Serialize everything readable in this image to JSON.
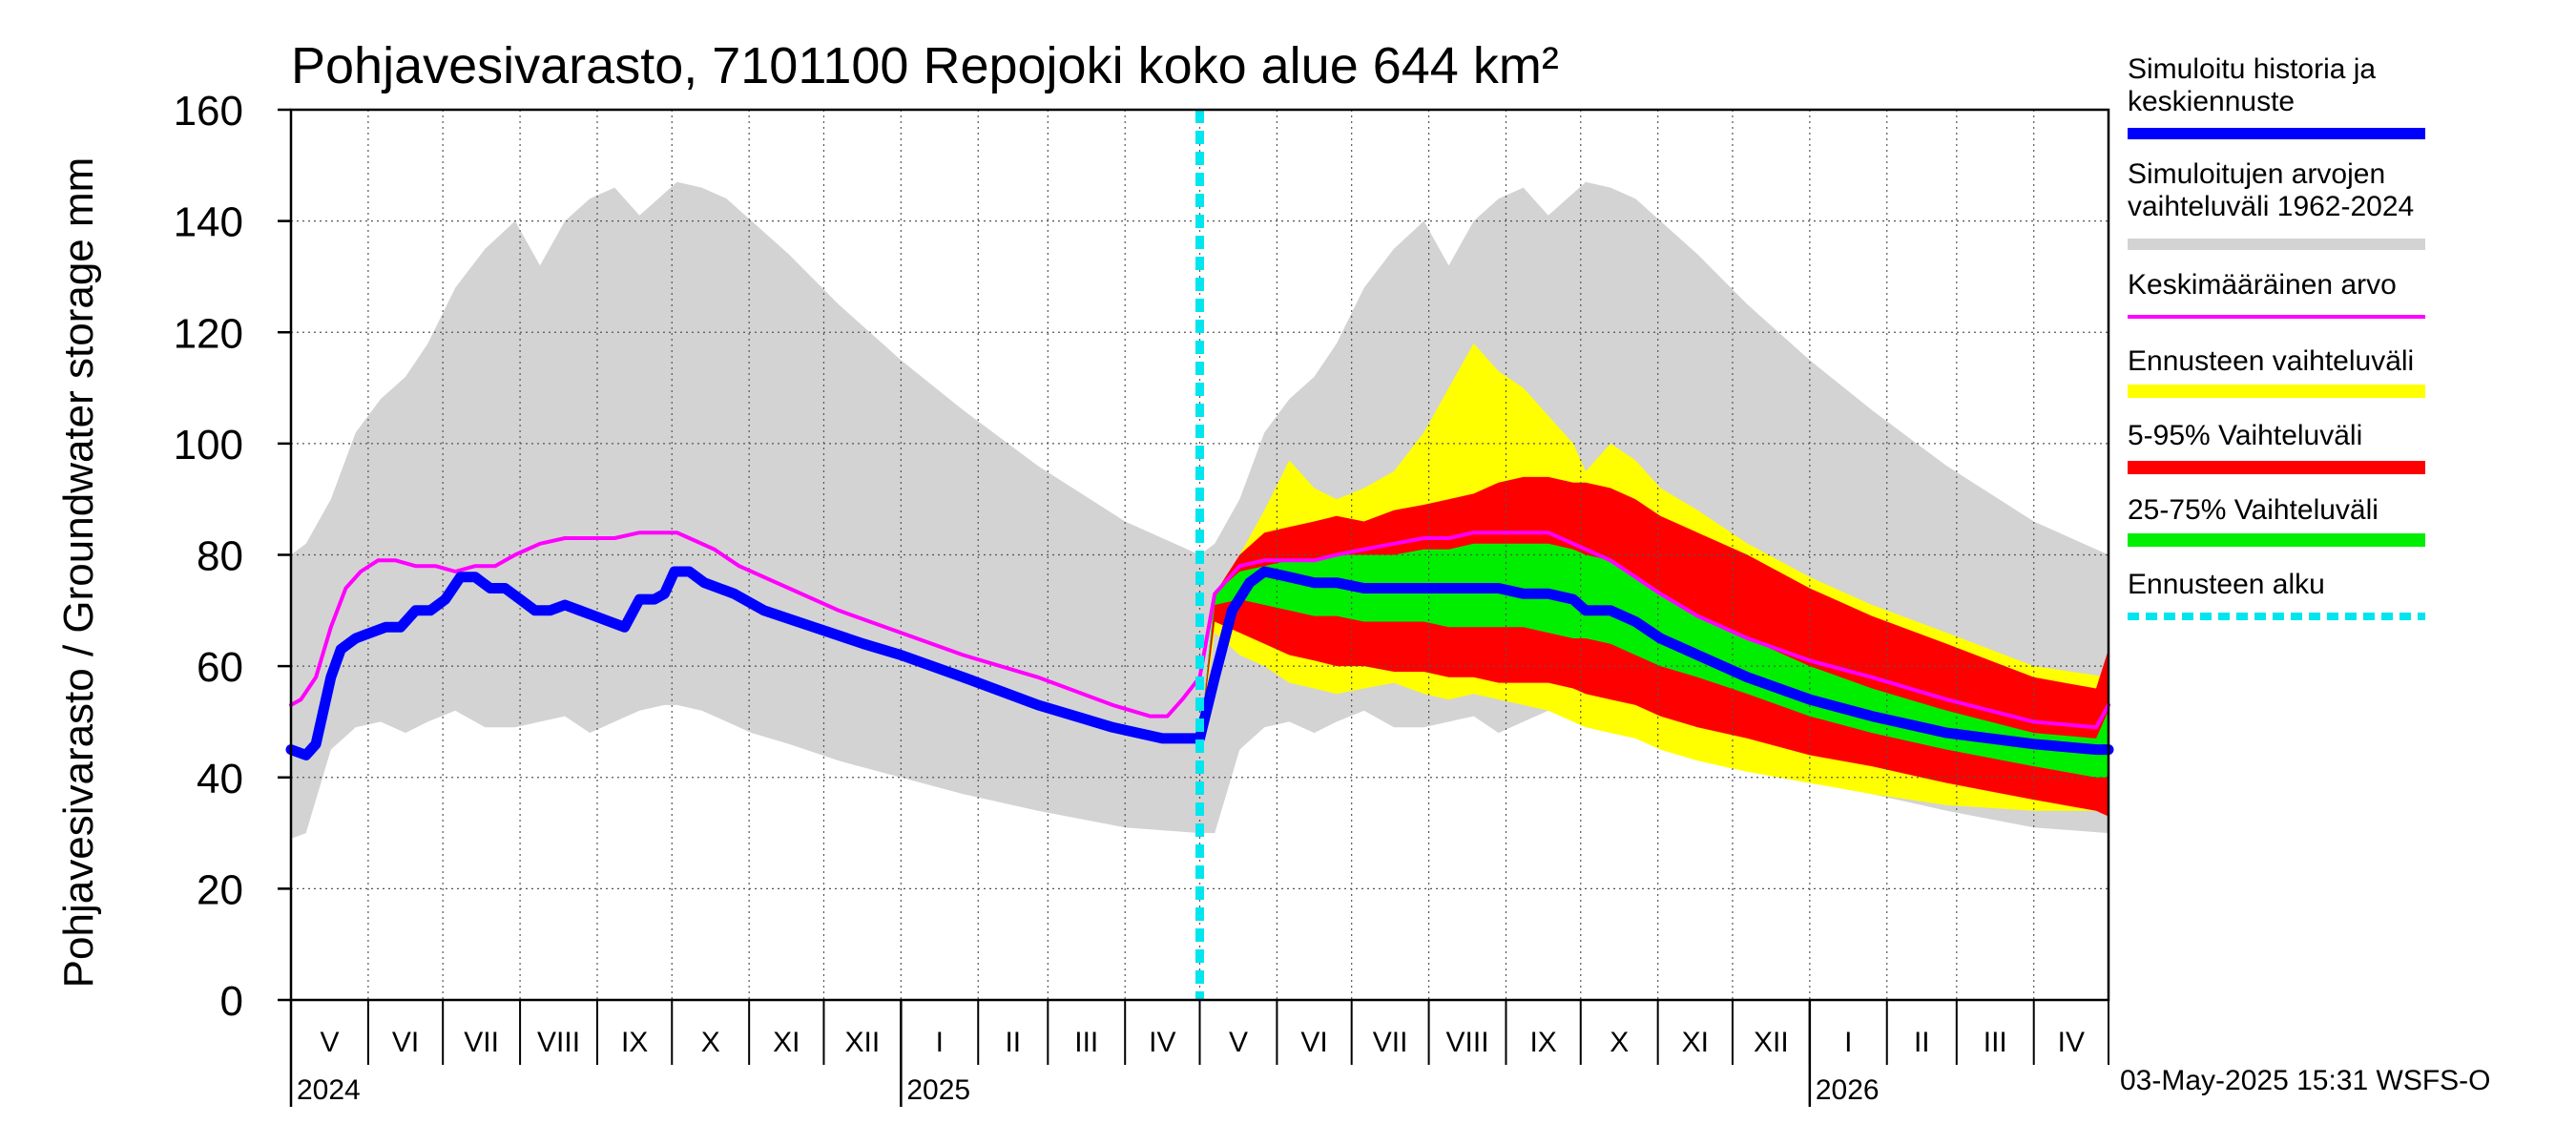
{
  "chart_data": {
    "type": "area",
    "title": "Pohjavesivarasto, 7101100 Repojoki koko alue 644 km²",
    "ylabel": "Pohjavesivarasto / Groundwater storage   mm",
    "xlabel": "",
    "ylim": [
      0,
      160
    ],
    "yticks": [
      0,
      20,
      40,
      60,
      80,
      100,
      120,
      140,
      160
    ],
    "xlim_days": [
      0,
      730
    ],
    "grid": true,
    "forecast_start_day": 365,
    "months": [
      {
        "label": "V",
        "start": 0
      },
      {
        "label": "VI",
        "start": 31
      },
      {
        "label": "VII",
        "start": 61
      },
      {
        "label": "VIII",
        "start": 92
      },
      {
        "label": "IX",
        "start": 123
      },
      {
        "label": "X",
        "start": 153
      },
      {
        "label": "XI",
        "start": 184
      },
      {
        "label": "XII",
        "start": 214
      },
      {
        "label": "I",
        "start": 245
      },
      {
        "label": "II",
        "start": 276
      },
      {
        "label": "III",
        "start": 304
      },
      {
        "label": "IV",
        "start": 335
      },
      {
        "label": "V",
        "start": 365
      },
      {
        "label": "VI",
        "start": 396
      },
      {
        "label": "VII",
        "start": 426
      },
      {
        "label": "VIII",
        "start": 457
      },
      {
        "label": "IX",
        "start": 488
      },
      {
        "label": "X",
        "start": 518
      },
      {
        "label": "XI",
        "start": 549
      },
      {
        "label": "XII",
        "start": 579
      },
      {
        "label": "I",
        "start": 610
      },
      {
        "label": "II",
        "start": 641
      },
      {
        "label": "III",
        "start": 669
      },
      {
        "label": "IV",
        "start": 700
      }
    ],
    "month_end": 730,
    "years": [
      {
        "label": "2024",
        "day": 0
      },
      {
        "label": "2025",
        "day": 245
      },
      {
        "label": "2026",
        "day": 610
      }
    ],
    "series": [
      {
        "name": "Simuloitujen arvojen vaihteluväli 1962-2024",
        "kind": "band",
        "color": "#d3d3d3",
        "x": [
          0,
          6,
          16,
          26,
          36,
          46,
          55,
          66,
          78,
          90,
          100,
          110,
          120,
          130,
          140,
          150,
          155,
          165,
          175,
          185,
          200,
          220,
          245,
          270,
          300,
          335,
          365,
          371,
          381,
          391,
          401,
          411,
          420,
          431,
          443,
          455,
          465,
          475,
          485,
          495,
          505,
          515,
          520,
          530,
          540,
          550,
          565,
          585,
          610,
          635,
          665,
          700,
          730
        ],
        "upper": [
          80,
          82,
          90,
          102,
          108,
          112,
          118,
          128,
          135,
          140,
          132,
          140,
          144,
          146,
          141,
          145,
          147,
          146,
          144,
          140,
          134,
          125,
          115,
          106,
          96,
          86,
          80,
          82,
          90,
          102,
          108,
          112,
          118,
          128,
          135,
          140,
          132,
          140,
          144,
          146,
          141,
          145,
          147,
          146,
          144,
          140,
          134,
          125,
          115,
          106,
          96,
          86,
          80
        ],
        "lower": [
          29,
          30,
          45,
          49,
          50,
          48,
          50,
          52,
          49,
          49,
          50,
          51,
          48,
          50,
          52,
          53,
          53,
          52,
          50,
          48,
          46,
          43,
          40,
          37,
          34,
          31,
          30,
          30,
          45,
          49,
          50,
          48,
          50,
          52,
          49,
          49,
          50,
          51,
          48,
          50,
          52,
          53,
          53,
          52,
          50,
          48,
          46,
          43,
          40,
          37,
          34,
          31,
          30
        ]
      },
      {
        "name": "Ennusteen vaihteluväli",
        "kind": "band",
        "color": "#ffff00",
        "x": [
          365,
          371,
          381,
          391,
          401,
          411,
          420,
          431,
          443,
          455,
          465,
          475,
          485,
          495,
          505,
          515,
          520,
          530,
          540,
          550,
          565,
          585,
          610,
          635,
          665,
          700,
          730
        ],
        "upper": [
          46,
          72,
          80,
          88,
          97,
          92,
          90,
          92,
          95,
          102,
          110,
          118,
          113,
          110,
          105,
          100,
          95,
          100,
          97,
          92,
          88,
          82,
          76,
          71,
          66,
          60,
          58
        ],
        "lower": [
          46,
          66,
          62,
          60,
          57,
          56,
          55,
          56,
          57,
          55,
          54,
          55,
          54,
          53,
          52,
          50,
          49,
          48,
          47,
          45,
          43,
          41,
          39,
          37,
          35,
          34,
          34
        ]
      },
      {
        "name": "5-95% Vaihteluväli",
        "kind": "band",
        "color": "#ff0000",
        "x": [
          365,
          371,
          381,
          391,
          401,
          411,
          420,
          431,
          443,
          455,
          465,
          475,
          485,
          495,
          505,
          515,
          520,
          530,
          540,
          550,
          565,
          585,
          610,
          635,
          665,
          700,
          725,
          730
        ],
        "upper": [
          46,
          73,
          80,
          84,
          85,
          86,
          87,
          86,
          88,
          89,
          90,
          91,
          93,
          94,
          94,
          93,
          93,
          92,
          90,
          87,
          84,
          80,
          74,
          69,
          64,
          58,
          56,
          63
        ],
        "lower": [
          46,
          68,
          66,
          64,
          62,
          61,
          60,
          60,
          59,
          59,
          58,
          58,
          57,
          57,
          57,
          56,
          55,
          54,
          53,
          51,
          49,
          47,
          44,
          42,
          39,
          36,
          34,
          33
        ]
      },
      {
        "name": "25-75% Vaihteluväli",
        "kind": "band",
        "color": "#00ee00",
        "x": [
          365,
          371,
          381,
          391,
          401,
          411,
          420,
          431,
          443,
          455,
          465,
          475,
          485,
          495,
          505,
          515,
          520,
          530,
          540,
          550,
          565,
          585,
          610,
          635,
          665,
          700,
          725,
          730
        ],
        "upper": [
          46,
          73,
          77,
          78,
          79,
          79,
          80,
          80,
          80,
          81,
          81,
          82,
          82,
          82,
          82,
          81,
          80,
          79,
          76,
          73,
          69,
          65,
          60,
          56,
          52,
          48,
          47,
          52
        ],
        "lower": [
          46,
          71,
          72,
          71,
          70,
          69,
          69,
          68,
          68,
          68,
          67,
          67,
          67,
          67,
          66,
          65,
          65,
          64,
          62,
          60,
          58,
          55,
          51,
          48,
          45,
          42,
          40,
          40
        ]
      },
      {
        "name": "Keskimääräinen arvo",
        "kind": "line",
        "color": "#ff00ff",
        "width": 4,
        "x": [
          0,
          4,
          10,
          16,
          22,
          28,
          35,
          42,
          50,
          58,
          66,
          74,
          82,
          90,
          100,
          110,
          120,
          130,
          140,
          150,
          155,
          160,
          170,
          180,
          200,
          220,
          245,
          270,
          300,
          330,
          345,
          352,
          358,
          365,
          371,
          381,
          391,
          401,
          411,
          420,
          431,
          443,
          455,
          465,
          475,
          485,
          495,
          505,
          515,
          520,
          530,
          540,
          550,
          565,
          585,
          610,
          635,
          665,
          700,
          725,
          730
        ],
        "values": [
          53,
          54,
          58,
          67,
          74,
          77,
          79,
          79,
          78,
          78,
          77,
          78,
          78,
          80,
          82,
          83,
          83,
          83,
          84,
          84,
          84,
          83,
          81,
          78,
          74,
          70,
          66,
          62,
          58,
          53,
          51,
          51,
          54,
          58,
          73,
          78,
          79,
          79,
          79,
          80,
          81,
          82,
          83,
          83,
          84,
          84,
          84,
          84,
          82,
          81,
          79,
          76,
          73,
          69,
          65,
          61,
          58,
          54,
          50,
          49,
          53
        ]
      },
      {
        "name": "Simuloitu historia ja keskiennuste",
        "kind": "line",
        "color": "#0000ff",
        "width": 11,
        "x": [
          0,
          6,
          10,
          16,
          20,
          26,
          32,
          38,
          44,
          50,
          56,
          62,
          68,
          74,
          80,
          86,
          92,
          98,
          104,
          110,
          116,
          122,
          128,
          134,
          140,
          146,
          150,
          154,
          160,
          166,
          172,
          178,
          190,
          210,
          230,
          245,
          270,
          300,
          330,
          350,
          358,
          365,
          371,
          378,
          385,
          391,
          401,
          411,
          420,
          431,
          443,
          455,
          465,
          475,
          485,
          495,
          505,
          515,
          520,
          530,
          540,
          550,
          565,
          585,
          610,
          635,
          665,
          700,
          725,
          730
        ],
        "values": [
          45,
          44,
          46,
          58,
          63,
          65,
          66,
          67,
          67,
          70,
          70,
          72,
          76,
          76,
          74,
          74,
          72,
          70,
          70,
          71,
          70,
          69,
          68,
          67,
          72,
          72,
          73,
          77,
          77,
          75,
          74,
          73,
          70,
          67,
          64,
          62,
          58,
          53,
          49,
          47,
          47,
          47,
          58,
          70,
          75,
          77,
          76,
          75,
          75,
          74,
          74,
          74,
          74,
          74,
          74,
          73,
          73,
          72,
          70,
          70,
          68,
          65,
          62,
          58,
          54,
          51,
          48,
          46,
          45,
          45
        ]
      }
    ],
    "legend": [
      {
        "label": "Simuloitu historia ja keskiennuste",
        "color": "#0000ff",
        "style": "solid"
      },
      {
        "label": "Simuloitujen arvojen vaihteluväli 1962-2024",
        "color": "#d3d3d3",
        "style": "solid"
      },
      {
        "label": "Keskimääräinen arvo",
        "color": "#ff00ff",
        "style": "thin"
      },
      {
        "label": "Ennusteen vaihteluväli",
        "color": "#ffff00",
        "style": "solid"
      },
      {
        "label": "5-95% Vaihteluväli",
        "color": "#ff0000",
        "style": "solid"
      },
      {
        "label": "25-75% Vaihteluväli",
        "color": "#00ee00",
        "style": "solid"
      },
      {
        "label": "Ennusteen alku",
        "color": "#00e5ee",
        "style": "dashed"
      }
    ],
    "legend_position": "right",
    "footer": "03-May-2025 15:31 WSFS-O"
  }
}
